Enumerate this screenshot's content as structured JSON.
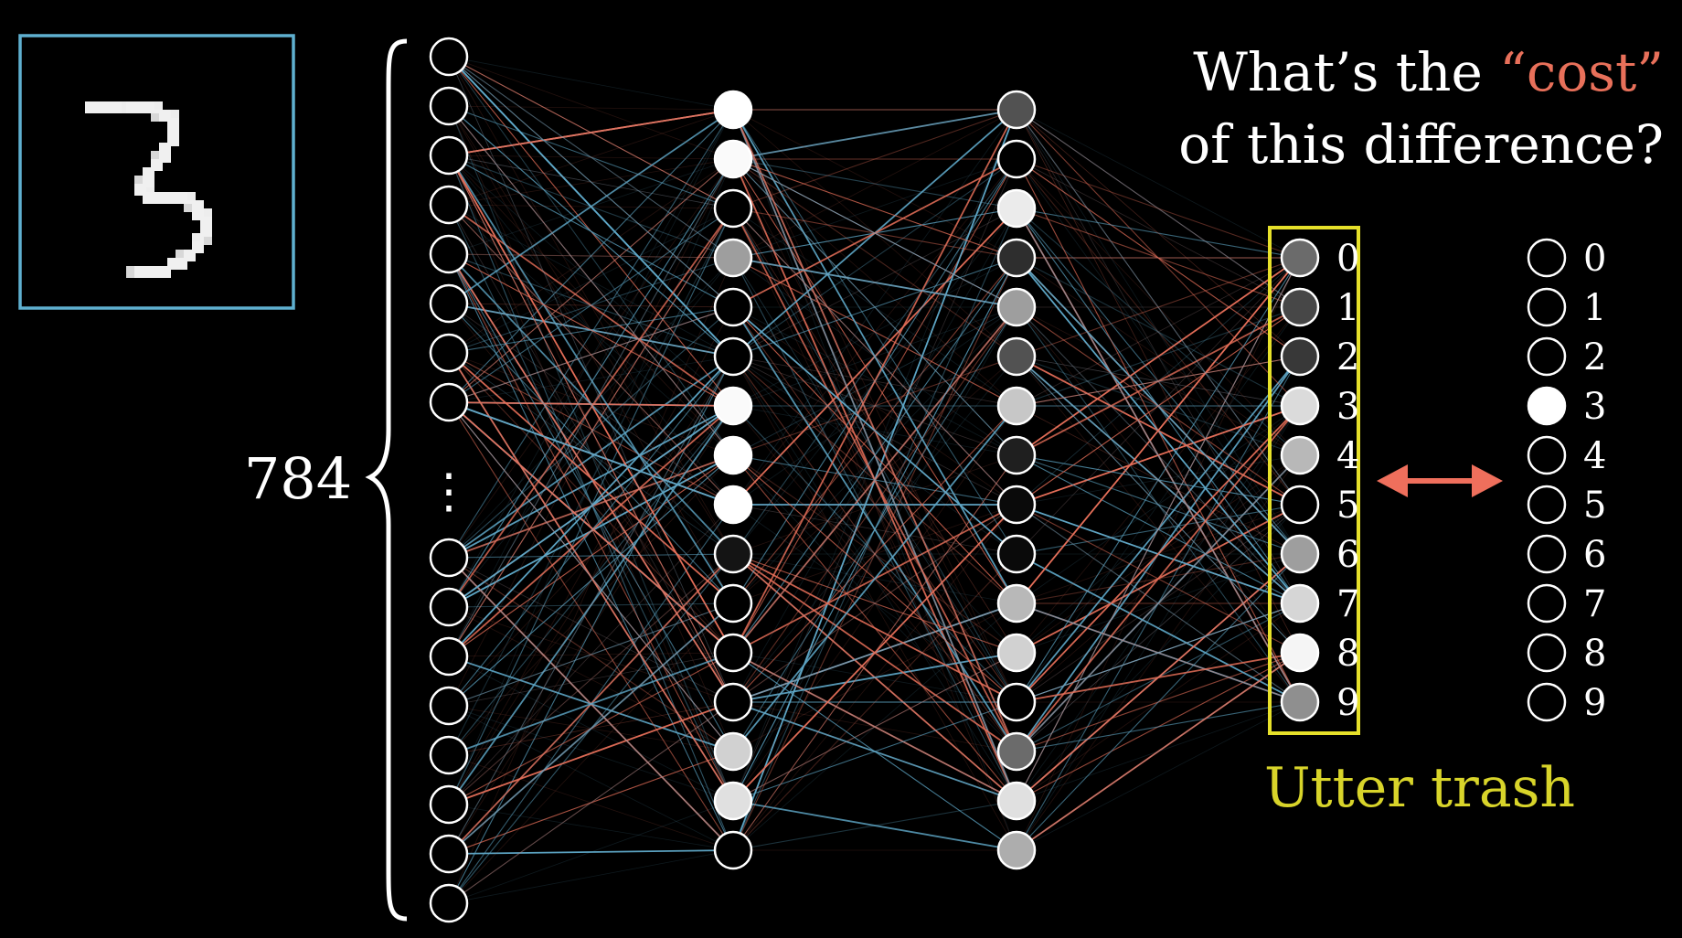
{
  "title": {
    "line1_prefix": "What’s the ",
    "line1_highlight": "“cost”",
    "line2": "of this difference?"
  },
  "input_count": "784",
  "input_ellipsis": "⋮",
  "caption": "Utter trash",
  "digits": [
    "0",
    "1",
    "2",
    "3",
    "4",
    "5",
    "6",
    "7",
    "8",
    "9"
  ],
  "colors": {
    "background": "#000000",
    "highlight": "#e8705a",
    "blue_edge": "#5fa8c8",
    "red_edge": "#e8705a",
    "output_box": "#e6e02a",
    "caption": "#d8d42a",
    "arrow": "#ef6f5c",
    "image_frame": "#5fb0d0"
  },
  "icons": {
    "arrow": "double-arrow-icon",
    "brace": "curly-brace-icon"
  },
  "network": {
    "input_layer_visible_neurons": 16,
    "hidden1_activations": [
      1.0,
      0.98,
      0.0,
      0.62,
      0.0,
      0.0,
      0.98,
      1.0,
      1.0,
      0.08,
      0.0,
      0.0,
      0.0,
      0.82,
      0.88,
      0.0
    ],
    "hidden2_activations": [
      0.32,
      0.0,
      0.92,
      0.18,
      0.62,
      0.32,
      0.78,
      0.12,
      0.04,
      0.04,
      0.72,
      0.82,
      0.0,
      0.42,
      0.88,
      0.68
    ],
    "output_activations": [
      0.42,
      0.28,
      0.22,
      0.86,
      0.72,
      0.0,
      0.62,
      0.84,
      0.96,
      0.56
    ],
    "target_activations": [
      0,
      0,
      0,
      1,
      0,
      0,
      0,
      0,
      0,
      0
    ]
  }
}
